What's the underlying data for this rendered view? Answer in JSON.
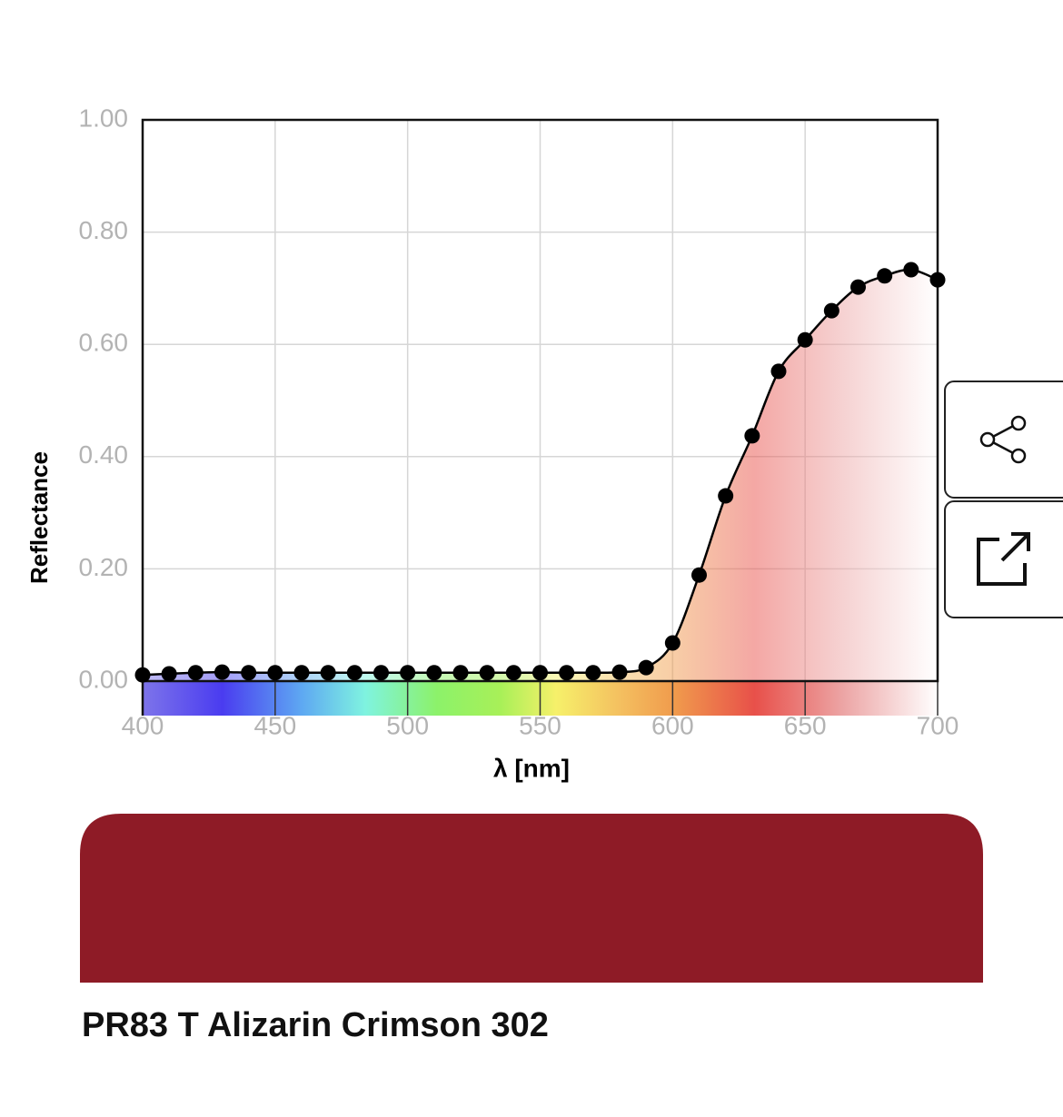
{
  "chart_data": {
    "type": "line",
    "x_label": "λ [nm]",
    "y_label": "Reflectance",
    "x": [
      400,
      410,
      420,
      430,
      440,
      450,
      460,
      470,
      480,
      490,
      500,
      510,
      520,
      530,
      540,
      550,
      560,
      570,
      580,
      590,
      600,
      610,
      620,
      630,
      640,
      650,
      660,
      670,
      680,
      690,
      700
    ],
    "series": [
      {
        "color": "#000000",
        "values": [
          0.011,
          0.013,
          0.015,
          0.016,
          0.015,
          0.015,
          0.015,
          0.015,
          0.015,
          0.015,
          0.015,
          0.015,
          0.015,
          0.015,
          0.015,
          0.015,
          0.015,
          0.015,
          0.016,
          0.024,
          0.068,
          0.189,
          0.33,
          0.437,
          0.552,
          0.608,
          0.66,
          0.702,
          0.722,
          0.733,
          0.715
        ]
      }
    ],
    "xlim": [
      400,
      700
    ],
    "xticks": [
      400,
      450,
      500,
      550,
      600,
      650,
      700
    ],
    "ylim": [
      0,
      1
    ],
    "yticks": [
      {
        "value": 0,
        "label": "0.00"
      },
      {
        "value": 0.2,
        "label": "0.20"
      },
      {
        "value": 0.4,
        "label": "0.40"
      },
      {
        "value": 0.6,
        "label": "0.60"
      },
      {
        "value": 0.8,
        "label": "0.80"
      },
      {
        "value": 1,
        "label": "1.00"
      }
    ],
    "grid": true
  },
  "swatch": {
    "color": "#8e1b26",
    "label": "PR83 T Alizarin Crimson 302"
  }
}
